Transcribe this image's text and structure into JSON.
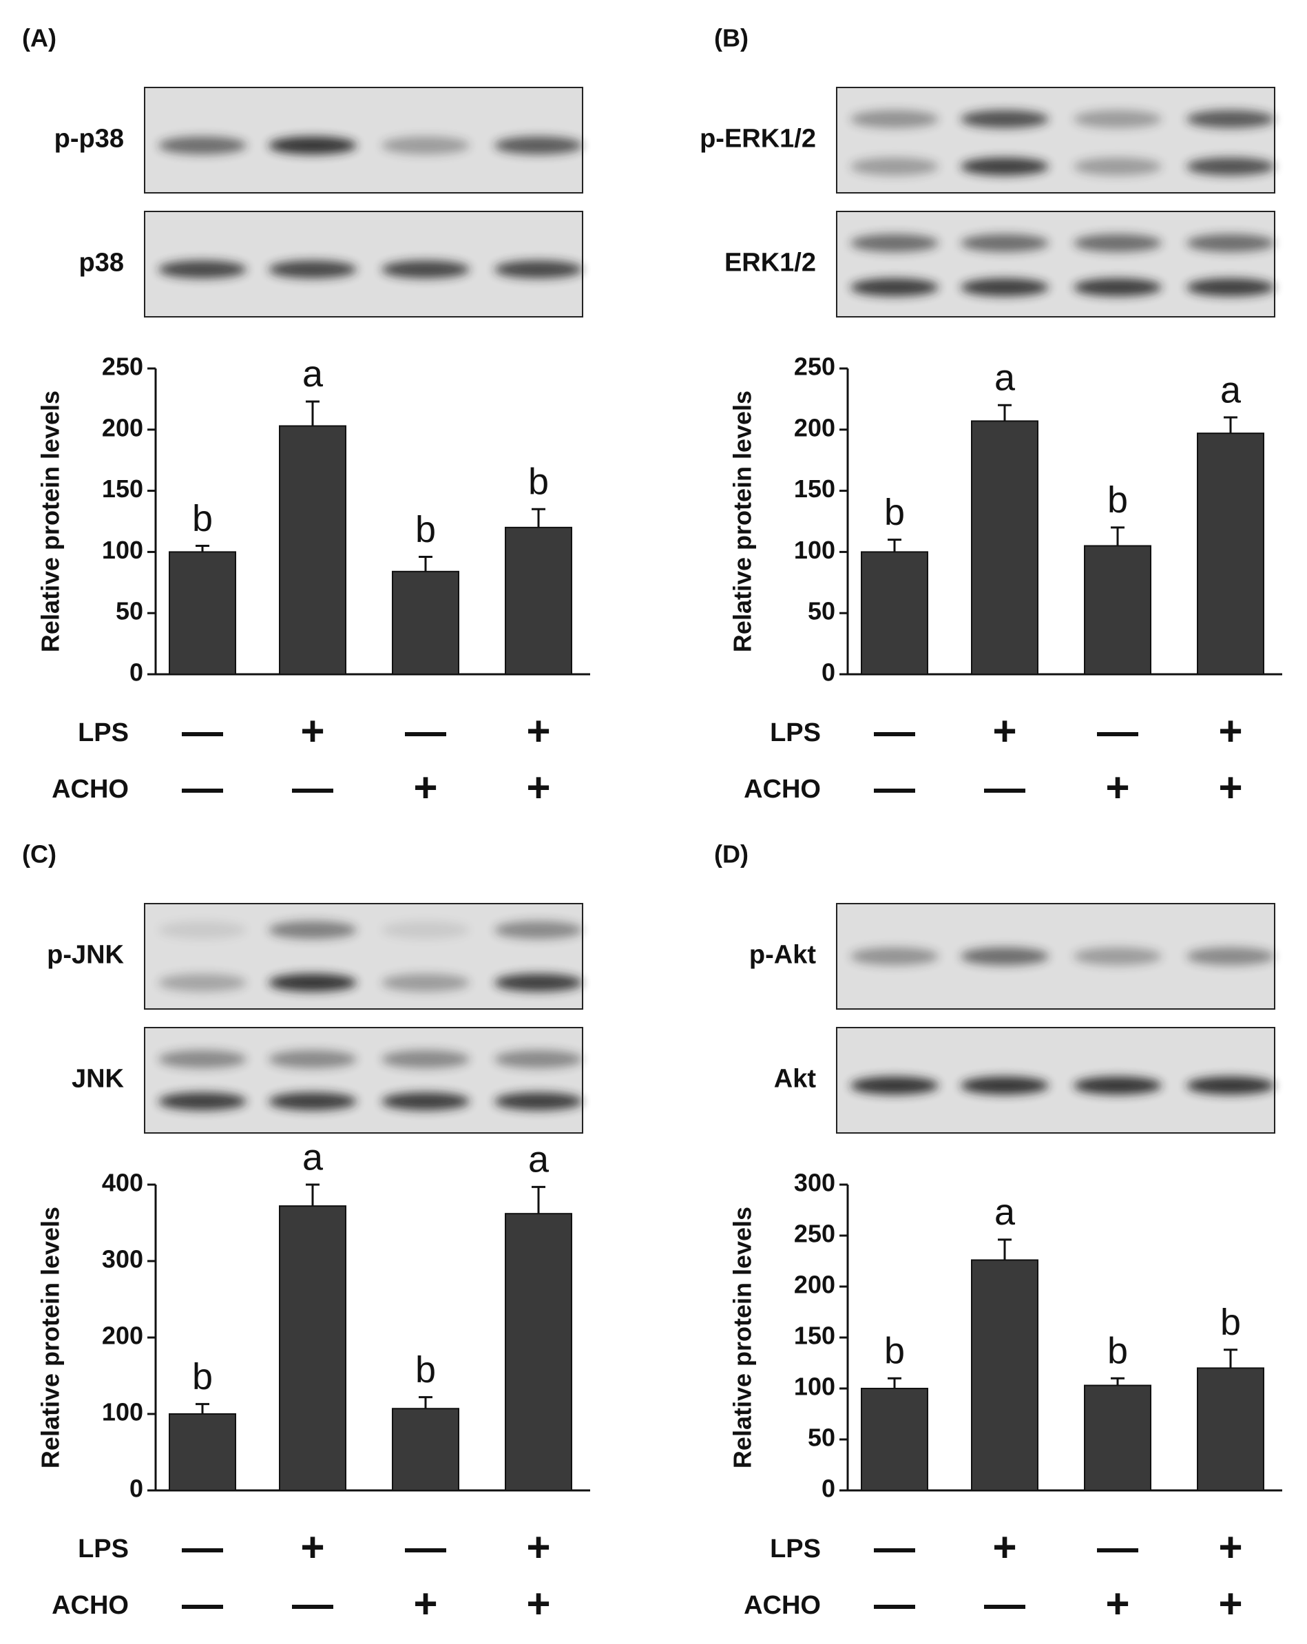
{
  "chart_data": [
    {
      "type": "bar",
      "panel": "(A)",
      "blots": [
        "p-p38",
        "p38"
      ],
      "ylabel": "Relative protein levels",
      "categories": [
        null,
        null,
        null,
        null
      ],
      "values": [
        100,
        203,
        84,
        120
      ],
      "errors": [
        5,
        20,
        12,
        15
      ],
      "annotations": [
        "b",
        "a",
        "b",
        "b"
      ],
      "color": "#3a3a3a",
      "ylim": [
        0,
        250
      ],
      "yticks": [
        0,
        50,
        100,
        150,
        200,
        250
      ],
      "treatments": [
        {
          "name": "LPS",
          "signs": [
            "—",
            "+",
            "—",
            "+"
          ]
        },
        {
          "name": "ACHO",
          "signs": [
            "—",
            "—",
            "+",
            "+"
          ]
        }
      ]
    },
    {
      "type": "bar",
      "panel": "(B)",
      "blots": [
        "p-ERK1/2",
        "ERK1/2"
      ],
      "ylabel": "Relative protein levels",
      "categories": [
        null,
        null,
        null,
        null
      ],
      "values": [
        100,
        207,
        105,
        197
      ],
      "errors": [
        10,
        13,
        15,
        13
      ],
      "annotations": [
        "b",
        "a",
        "b",
        "a"
      ],
      "color": "#3a3a3a",
      "ylim": [
        0,
        250
      ],
      "yticks": [
        0,
        50,
        100,
        150,
        200,
        250
      ],
      "treatments": [
        {
          "name": "LPS",
          "signs": [
            "—",
            "+",
            "—",
            "+"
          ]
        },
        {
          "name": "ACHO",
          "signs": [
            "—",
            "—",
            "+",
            "+"
          ]
        }
      ]
    },
    {
      "type": "bar",
      "panel": "(C)",
      "blots": [
        "p-JNK",
        "JNK"
      ],
      "ylabel": "Relative protein levels",
      "categories": [
        null,
        null,
        null,
        null
      ],
      "values": [
        100,
        372,
        107,
        362
      ],
      "errors": [
        13,
        28,
        15,
        35
      ],
      "annotations": [
        "b",
        "a",
        "b",
        "a"
      ],
      "color": "#3a3a3a",
      "ylim": [
        0,
        400
      ],
      "yticks": [
        0,
        100,
        200,
        300,
        400
      ],
      "treatments": [
        {
          "name": "LPS",
          "signs": [
            "—",
            "+",
            "—",
            "+"
          ]
        },
        {
          "name": "ACHO",
          "signs": [
            "—",
            "—",
            "+",
            "+"
          ]
        }
      ]
    },
    {
      "type": "bar",
      "panel": "(D)",
      "blots": [
        "p-Akt",
        "Akt"
      ],
      "ylabel": "Relative protein levels",
      "categories": [
        null,
        null,
        null,
        null
      ],
      "values": [
        100,
        226,
        103,
        120
      ],
      "errors": [
        10,
        20,
        7,
        18
      ],
      "annotations": [
        "b",
        "a",
        "b",
        "b"
      ],
      "color": "#3a3a3a",
      "ylim": [
        0,
        300
      ],
      "yticks": [
        0,
        50,
        100,
        150,
        200,
        250,
        300
      ],
      "treatments": [
        {
          "name": "LPS",
          "signs": [
            "—",
            "+",
            "—",
            "+"
          ]
        },
        {
          "name": "ACHO",
          "signs": [
            "—",
            "—",
            "+",
            "+"
          ]
        }
      ]
    }
  ]
}
